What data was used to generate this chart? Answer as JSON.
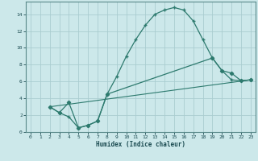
{
  "xlabel": "Humidex (Indice chaleur)",
  "bg_color": "#cce8ea",
  "grid_color": "#aacdd0",
  "line_color": "#2d7a6e",
  "xlim": [
    -0.5,
    23.5
  ],
  "ylim": [
    0,
    15.5
  ],
  "xticks": [
    0,
    1,
    2,
    3,
    4,
    5,
    6,
    7,
    8,
    9,
    10,
    11,
    12,
    13,
    14,
    15,
    16,
    17,
    18,
    19,
    20,
    21,
    22,
    23
  ],
  "yticks": [
    0,
    2,
    4,
    6,
    8,
    10,
    12,
    14
  ],
  "line1_x": [
    2,
    3,
    4,
    5,
    6,
    7,
    8,
    9,
    10,
    11,
    12,
    13,
    14,
    15,
    16,
    17,
    18,
    19,
    20,
    21,
    22,
    23
  ],
  "line1_y": [
    3.0,
    2.3,
    1.8,
    0.5,
    0.8,
    1.3,
    4.5,
    6.6,
    9.0,
    11.0,
    12.7,
    14.0,
    14.5,
    14.8,
    14.5,
    13.2,
    11.0,
    8.8,
    7.3,
    6.2,
    6.1,
    6.2
  ],
  "line2_x": [
    2,
    3,
    4,
    5,
    6,
    7,
    8,
    19,
    20,
    21,
    22,
    23
  ],
  "line2_y": [
    3.0,
    2.3,
    3.5,
    0.5,
    0.8,
    1.3,
    4.5,
    8.8,
    7.3,
    7.0,
    6.1,
    6.2
  ],
  "line3_x": [
    2,
    23
  ],
  "line3_y": [
    3.0,
    6.2
  ]
}
